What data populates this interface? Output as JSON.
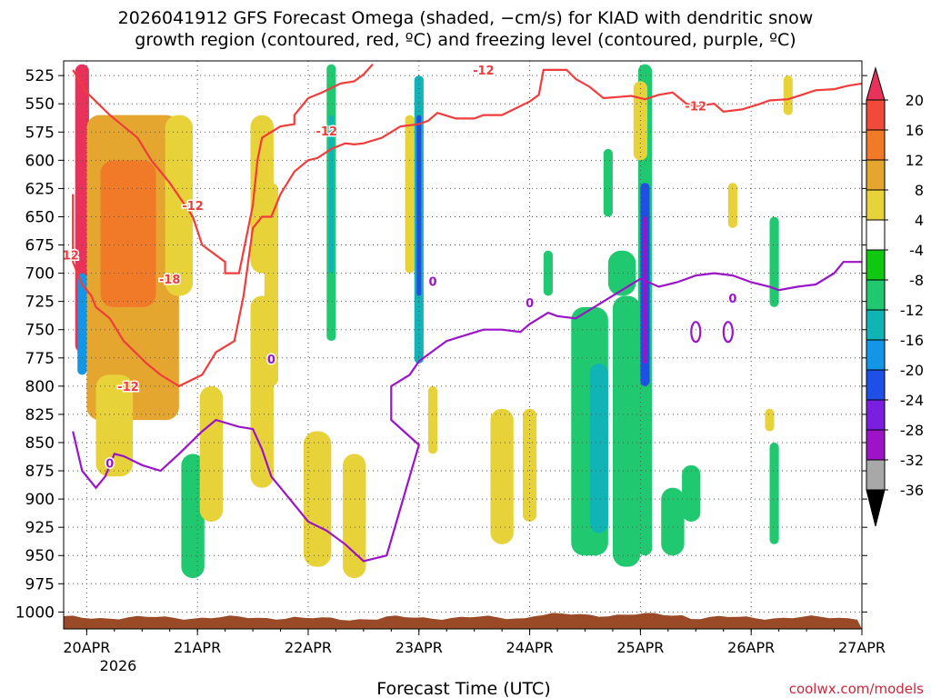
{
  "chart_data": {
    "type": "heatmap",
    "title_line1": "2026041912 GFS Forecast Omega (shaded, −cm/s) for KIAD with dendritic snow",
    "title_line2": "growth region (contoured, red, ºC) and freezing level (contoured, purple, ºC)",
    "xlabel": "Forecast Time (UTC)",
    "x_ticks": [
      "20APR",
      "21APR",
      "22APR",
      "23APR",
      "24APR",
      "25APR",
      "26APR",
      "27APR"
    ],
    "x_year": "2026",
    "x_range_hours": [
      -5,
      168
    ],
    "y_ticks": [
      525,
      550,
      575,
      600,
      625,
      650,
      675,
      700,
      725,
      750,
      775,
      800,
      825,
      850,
      875,
      900,
      925,
      950,
      975,
      1000
    ],
    "y_range_hpa": [
      512,
      1015
    ],
    "colorbar_labels": [
      "20",
      "16",
      "12",
      "8",
      "4",
      "-4",
      "-8",
      "-12",
      "-16",
      "-20",
      "-24",
      "-28",
      "-32",
      "-36"
    ],
    "colorbar_colors": [
      "#e8325a",
      "#f04a3a",
      "#f07a28",
      "#e5a630",
      "#e8d23a",
      "#ffffff",
      "#10c810",
      "#20c870",
      "#10b4b4",
      "#1496e6",
      "#1e4fe6",
      "#7a1ee0",
      "#9e12c8",
      "#a8a8a8",
      "#000000"
    ],
    "omega_blobs": [
      {
        "t": -1,
        "p_top": 515,
        "p_bot": 770,
        "w": 3,
        "v": 30
      },
      {
        "t": -1,
        "p_top": 580,
        "p_bot": 700,
        "w": 2,
        "v": 38
      },
      {
        "t": -1,
        "p_top": 700,
        "p_bot": 790,
        "w": 2,
        "v": -18
      },
      {
        "t": 10,
        "p_top": 560,
        "p_bot": 830,
        "w": 20,
        "v": 10
      },
      {
        "t": 9,
        "p_top": 600,
        "p_bot": 730,
        "w": 12,
        "v": 13
      },
      {
        "t": 20,
        "p_top": 560,
        "p_bot": 720,
        "w": 6,
        "v": 6
      },
      {
        "t": 6,
        "p_top": 790,
        "p_bot": 880,
        "w": 8,
        "v": 6
      },
      {
        "t": 23,
        "p_top": 860,
        "p_bot": 970,
        "w": 5,
        "v": -9
      },
      {
        "t": 27,
        "p_top": 800,
        "p_bot": 920,
        "w": 5,
        "v": 5
      },
      {
        "t": 38,
        "p_top": 560,
        "p_bot": 700,
        "w": 5,
        "v": 5
      },
      {
        "t": 38,
        "p_top": 720,
        "p_bot": 890,
        "w": 5,
        "v": 5
      },
      {
        "t": 50,
        "p_top": 840,
        "p_bot": 960,
        "w": 6,
        "v": 5
      },
      {
        "t": 40,
        "p_top": 620,
        "p_bot": 800,
        "w": 3,
        "v": 5
      },
      {
        "t": 53,
        "p_top": 515,
        "p_bot": 760,
        "w": 2,
        "v": -8
      },
      {
        "t": 53,
        "p_top": 560,
        "p_bot": 700,
        "w": 1,
        "v": -14
      },
      {
        "t": 58,
        "p_top": 860,
        "p_bot": 970,
        "w": 5,
        "v": 5
      },
      {
        "t": 72,
        "p_top": 525,
        "p_bot": 780,
        "w": 2,
        "v": -12
      },
      {
        "t": 70,
        "p_top": 560,
        "p_bot": 700,
        "w": 2,
        "v": 7
      },
      {
        "t": 72,
        "p_top": 560,
        "p_bot": 720,
        "w": 1,
        "v": -22
      },
      {
        "t": 75,
        "p_top": 800,
        "p_bot": 860,
        "w": 2,
        "v": 5
      },
      {
        "t": 90,
        "p_top": 820,
        "p_bot": 940,
        "w": 5,
        "v": 5
      },
      {
        "t": 96,
        "p_top": 820,
        "p_bot": 920,
        "w": 3,
        "v": 5
      },
      {
        "t": 100,
        "p_top": 680,
        "p_bot": 720,
        "w": 2,
        "v": -8
      },
      {
        "t": 109,
        "p_top": 730,
        "p_bot": 950,
        "w": 8,
        "v": -8
      },
      {
        "t": 111,
        "p_top": 780,
        "p_bot": 930,
        "w": 4,
        "v": -12
      },
      {
        "t": 116,
        "p_top": 680,
        "p_bot": 720,
        "w": 6,
        "v": -10
      },
      {
        "t": 117,
        "p_top": 720,
        "p_bot": 960,
        "w": 6,
        "v": -9
      },
      {
        "t": 121,
        "p_top": 515,
        "p_bot": 950,
        "w": 3,
        "v": -10
      },
      {
        "t": 121,
        "p_top": 620,
        "p_bot": 800,
        "w": 2,
        "v": -20
      },
      {
        "t": 121,
        "p_top": 650,
        "p_bot": 780,
        "w": 1,
        "v": -30
      },
      {
        "t": 120,
        "p_top": 530,
        "p_bot": 600,
        "w": 3,
        "v": 6
      },
      {
        "t": 113,
        "p_top": 590,
        "p_bot": 650,
        "w": 2,
        "v": -9
      },
      {
        "t": 127,
        "p_top": 890,
        "p_bot": 950,
        "w": 5,
        "v": -9
      },
      {
        "t": 131,
        "p_top": 870,
        "p_bot": 920,
        "w": 4,
        "v": -10
      },
      {
        "t": 149,
        "p_top": 650,
        "p_bot": 730,
        "w": 2,
        "v": -9
      },
      {
        "t": 149,
        "p_top": 850,
        "p_bot": 940,
        "w": 2,
        "v": -8
      },
      {
        "t": 152,
        "p_top": 525,
        "p_bot": 560,
        "w": 2,
        "v": 5
      },
      {
        "t": 140,
        "p_top": 620,
        "p_bot": 660,
        "w": 2,
        "v": 5
      },
      {
        "t": 148,
        "p_top": 820,
        "p_bot": 840,
        "w": 2,
        "v": 5
      }
    ],
    "dgz_upper_contour": [
      [
        -3,
        520
      ],
      [
        0,
        540
      ],
      [
        5,
        560
      ],
      [
        11,
        580
      ],
      [
        14,
        600
      ],
      [
        18,
        620
      ],
      [
        23,
        650
      ],
      [
        25,
        675
      ],
      [
        30,
        690
      ],
      [
        30,
        700
      ],
      [
        33,
        700
      ],
      [
        36,
        640
      ],
      [
        37,
        600
      ],
      [
        38,
        580
      ],
      [
        42,
        570
      ],
      [
        45,
        568
      ],
      [
        45,
        560
      ],
      [
        48,
        545
      ],
      [
        51,
        540
      ],
      [
        55,
        532
      ],
      [
        58,
        530
      ],
      [
        60,
        524
      ],
      [
        62,
        515
      ]
    ],
    "dgz_lower_contour": [
      [
        -3,
        630
      ],
      [
        -3,
        690
      ],
      [
        -1,
        710
      ],
      [
        1,
        720
      ],
      [
        2,
        730
      ],
      [
        5,
        740
      ],
      [
        8,
        760
      ],
      [
        13,
        780
      ],
      [
        16,
        790
      ],
      [
        20,
        800
      ],
      [
        25,
        790
      ],
      [
        28,
        770
      ],
      [
        32,
        760
      ],
      [
        34,
        720
      ],
      [
        36,
        660
      ],
      [
        38,
        650
      ],
      [
        40,
        650
      ],
      [
        42,
        630
      ],
      [
        45,
        610
      ],
      [
        48,
        600
      ],
      [
        50,
        598
      ],
      [
        53,
        590
      ],
      [
        56,
        585
      ],
      [
        58,
        586
      ],
      [
        60,
        585
      ],
      [
        64,
        580
      ],
      [
        68,
        570
      ],
      [
        72,
        568
      ],
      [
        74,
        565
      ],
      [
        76,
        558
      ],
      [
        80,
        563
      ],
      [
        84,
        563
      ],
      [
        86,
        560
      ],
      [
        90,
        560
      ],
      [
        96,
        548
      ],
      [
        98,
        542
      ],
      [
        99,
        520
      ],
      [
        104,
        520
      ],
      [
        106,
        528
      ],
      [
        109,
        535
      ],
      [
        112,
        545
      ],
      [
        115,
        544
      ],
      [
        118,
        543
      ],
      [
        121,
        546
      ],
      [
        124,
        542
      ],
      [
        127,
        540
      ],
      [
        130,
        550
      ],
      [
        132,
        552
      ],
      [
        136,
        550
      ],
      [
        138,
        557
      ],
      [
        142,
        555
      ],
      [
        146,
        550
      ],
      [
        148,
        547
      ],
      [
        152,
        546
      ],
      [
        155,
        542
      ],
      [
        158,
        538
      ],
      [
        162,
        537
      ],
      [
        165,
        534
      ],
      [
        168,
        532
      ]
    ],
    "freezing_contour": [
      [
        -3,
        840
      ],
      [
        -1,
        875
      ],
      [
        2,
        890
      ],
      [
        4,
        880
      ],
      [
        6,
        860
      ],
      [
        8,
        862
      ],
      [
        12,
        870
      ],
      [
        16,
        875
      ],
      [
        20,
        860
      ],
      [
        25,
        840
      ],
      [
        28,
        830
      ],
      [
        33,
        836
      ],
      [
        36,
        838
      ],
      [
        38,
        856
      ],
      [
        40,
        880
      ],
      [
        44,
        900
      ],
      [
        48,
        920
      ],
      [
        52,
        928
      ],
      [
        56,
        940
      ],
      [
        60,
        955
      ],
      [
        65,
        950
      ],
      [
        70,
        880
      ],
      [
        72,
        852
      ],
      [
        66,
        830
      ],
      [
        66,
        800
      ],
      [
        70,
        790
      ],
      [
        72,
        778
      ],
      [
        78,
        760
      ],
      [
        82,
        755
      ],
      [
        86,
        750
      ],
      [
        90,
        750
      ],
      [
        94,
        752
      ],
      [
        96,
        745
      ],
      [
        100,
        735
      ],
      [
        102,
        738
      ],
      [
        106,
        740
      ],
      [
        110,
        730
      ],
      [
        114,
        720
      ],
      [
        118,
        710
      ],
      [
        120,
        705
      ],
      [
        124,
        712
      ],
      [
        128,
        708
      ],
      [
        132,
        702
      ],
      [
        136,
        700
      ],
      [
        140,
        702
      ],
      [
        144,
        708
      ],
      [
        148,
        712
      ],
      [
        150,
        715
      ],
      [
        154,
        712
      ],
      [
        158,
        710
      ],
      [
        162,
        700
      ],
      [
        164,
        690
      ],
      [
        168,
        690
      ]
    ],
    "freezing_small_loops": [
      {
        "t": 132,
        "p": 752
      },
      {
        "t": 139,
        "p": 752
      }
    ],
    "contour_labels": [
      {
        "text": "-12",
        "t": -4,
        "p": 684,
        "kind": "dgz"
      },
      {
        "text": "-12",
        "t": 23,
        "p": 640,
        "kind": "dgz"
      },
      {
        "text": "-18",
        "t": 18,
        "p": 705,
        "kind": "dgz"
      },
      {
        "text": "-12",
        "t": 9,
        "p": 800,
        "kind": "dgz"
      },
      {
        "text": "-12",
        "t": 52,
        "p": 574,
        "kind": "dgz"
      },
      {
        "text": "-12",
        "t": 86,
        "p": 520,
        "kind": "dgz"
      },
      {
        "text": "-12",
        "t": 132,
        "p": 552,
        "kind": "dgz"
      },
      {
        "text": "0",
        "t": 5,
        "p": 868,
        "kind": "fz"
      },
      {
        "text": "0",
        "t": 40,
        "p": 776,
        "kind": "fz"
      },
      {
        "text": "0",
        "t": 75,
        "p": 707,
        "kind": "fz"
      },
      {
        "text": "0",
        "t": 96,
        "p": 726,
        "kind": "fz"
      },
      {
        "text": "0",
        "t": 140,
        "p": 722,
        "kind": "fz"
      }
    ],
    "terrain_top_hpa": 1005,
    "terrain_color": "#9a4a26",
    "credit": "coolwx.com/models"
  }
}
